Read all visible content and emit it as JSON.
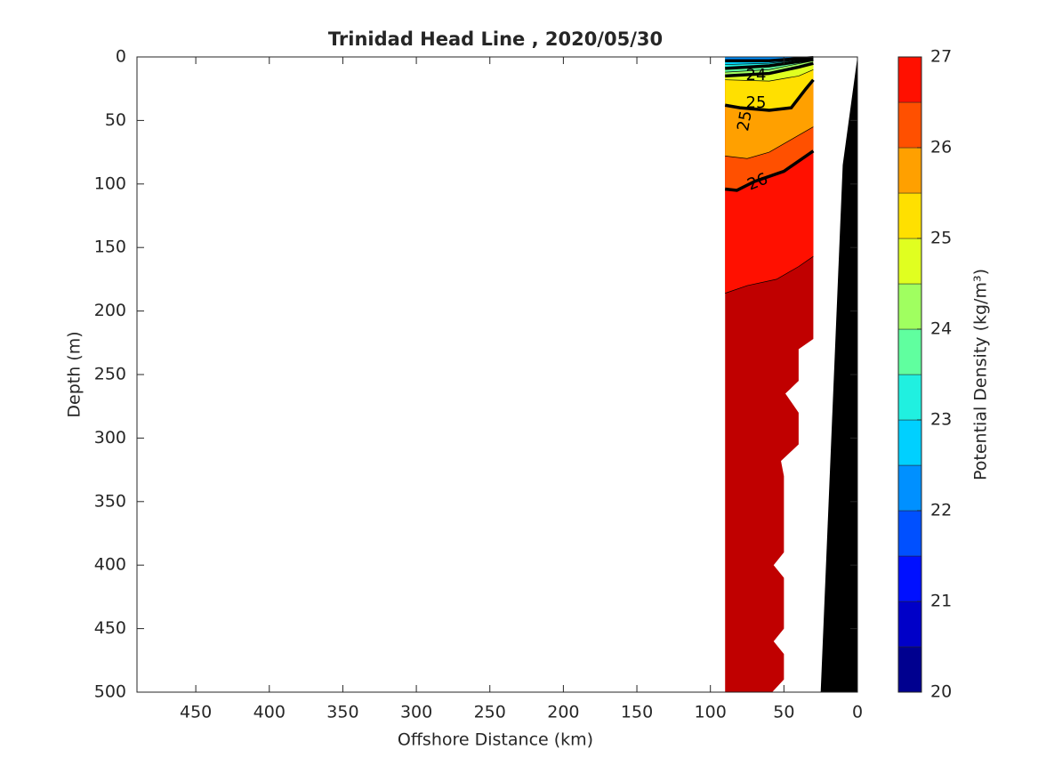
{
  "chart_data": {
    "type": "contour",
    "title": "Trinidad Head Line , 2020/05/30",
    "x_label": "Offshore Distance (km)",
    "y_label": "Depth (m)",
    "xlim": [
      490,
      0
    ],
    "xticks": [
      450,
      400,
      350,
      300,
      250,
      200,
      150,
      100,
      50,
      0
    ],
    "ylim": [
      0,
      500
    ],
    "yticks": [
      0,
      50,
      100,
      150,
      200,
      250,
      300,
      350,
      400,
      450,
      500
    ],
    "colorbar": {
      "label": "Potential Density (kg/m³)",
      "levels": [
        20,
        20.5,
        21,
        21.5,
        22,
        22.5,
        23,
        23.5,
        24,
        24.5,
        25,
        25.5,
        26,
        26.5,
        27
      ],
      "colors": [
        "#00008f",
        "#0000c8",
        "#0010ff",
        "#0050ff",
        "#0090ff",
        "#00d0ff",
        "#20f0e0",
        "#60ff9f",
        "#a0ff60",
        "#e0ff20",
        "#ffe000",
        "#ffa000",
        "#ff5000",
        "#ff1000",
        "#c00000"
      ],
      "ticks": [
        20,
        21,
        22,
        23,
        24,
        25,
        26,
        27
      ]
    },
    "domain": {
      "x": [
        90,
        30,
        30,
        40,
        40,
        49,
        40,
        40,
        52,
        50,
        50,
        57,
        50,
        50,
        57,
        50,
        50,
        58,
        90
      ],
      "depth": [
        0,
        0,
        222,
        230,
        255,
        265,
        280,
        305,
        318,
        330,
        390,
        400,
        410,
        450,
        460,
        470,
        490,
        500,
        500
      ]
    },
    "bathymetry": {
      "x": [
        0,
        10,
        25,
        0
      ],
      "depth": [
        0,
        85,
        500,
        500
      ]
    },
    "isolines": [
      {
        "level": 26.5,
        "x": [
          90,
          75,
          55,
          40,
          30
        ],
        "depth": [
          186,
          180,
          175,
          165,
          157
        ]
      },
      {
        "level": 26,
        "x": [
          90,
          82,
          70,
          50,
          30
        ],
        "depth": [
          104,
          105,
          98,
          90,
          74
        ]
      },
      {
        "level": 25.5,
        "x": [
          90,
          75,
          60,
          45,
          30
        ],
        "depth": [
          78,
          80,
          75,
          65,
          55
        ]
      },
      {
        "level": 25,
        "x": [
          90,
          80,
          60,
          45,
          35,
          30
        ],
        "depth": [
          38,
          40,
          42,
          40,
          25,
          18
        ]
      },
      {
        "level": 24.5,
        "x": [
          90,
          60,
          40,
          30
        ],
        "depth": [
          18,
          19,
          15,
          10
        ]
      },
      {
        "level": 24,
        "x": [
          90,
          60,
          40,
          30
        ],
        "depth": [
          15,
          13,
          8,
          5
        ]
      },
      {
        "level": 23.5,
        "x": [
          90,
          60,
          30
        ],
        "depth": [
          12,
          10,
          3
        ]
      },
      {
        "level": 23,
        "x": [
          90,
          60,
          30
        ],
        "depth": [
          9,
          7,
          2
        ]
      },
      {
        "level": 22.5,
        "x": [
          90,
          60,
          30
        ],
        "depth": [
          6,
          5,
          1
        ]
      },
      {
        "level": 22,
        "x": [
          90,
          60,
          30
        ],
        "depth": [
          3,
          3,
          0.5
        ]
      }
    ],
    "contour_labels": [
      "24",
      "25",
      "25",
      "26"
    ]
  }
}
